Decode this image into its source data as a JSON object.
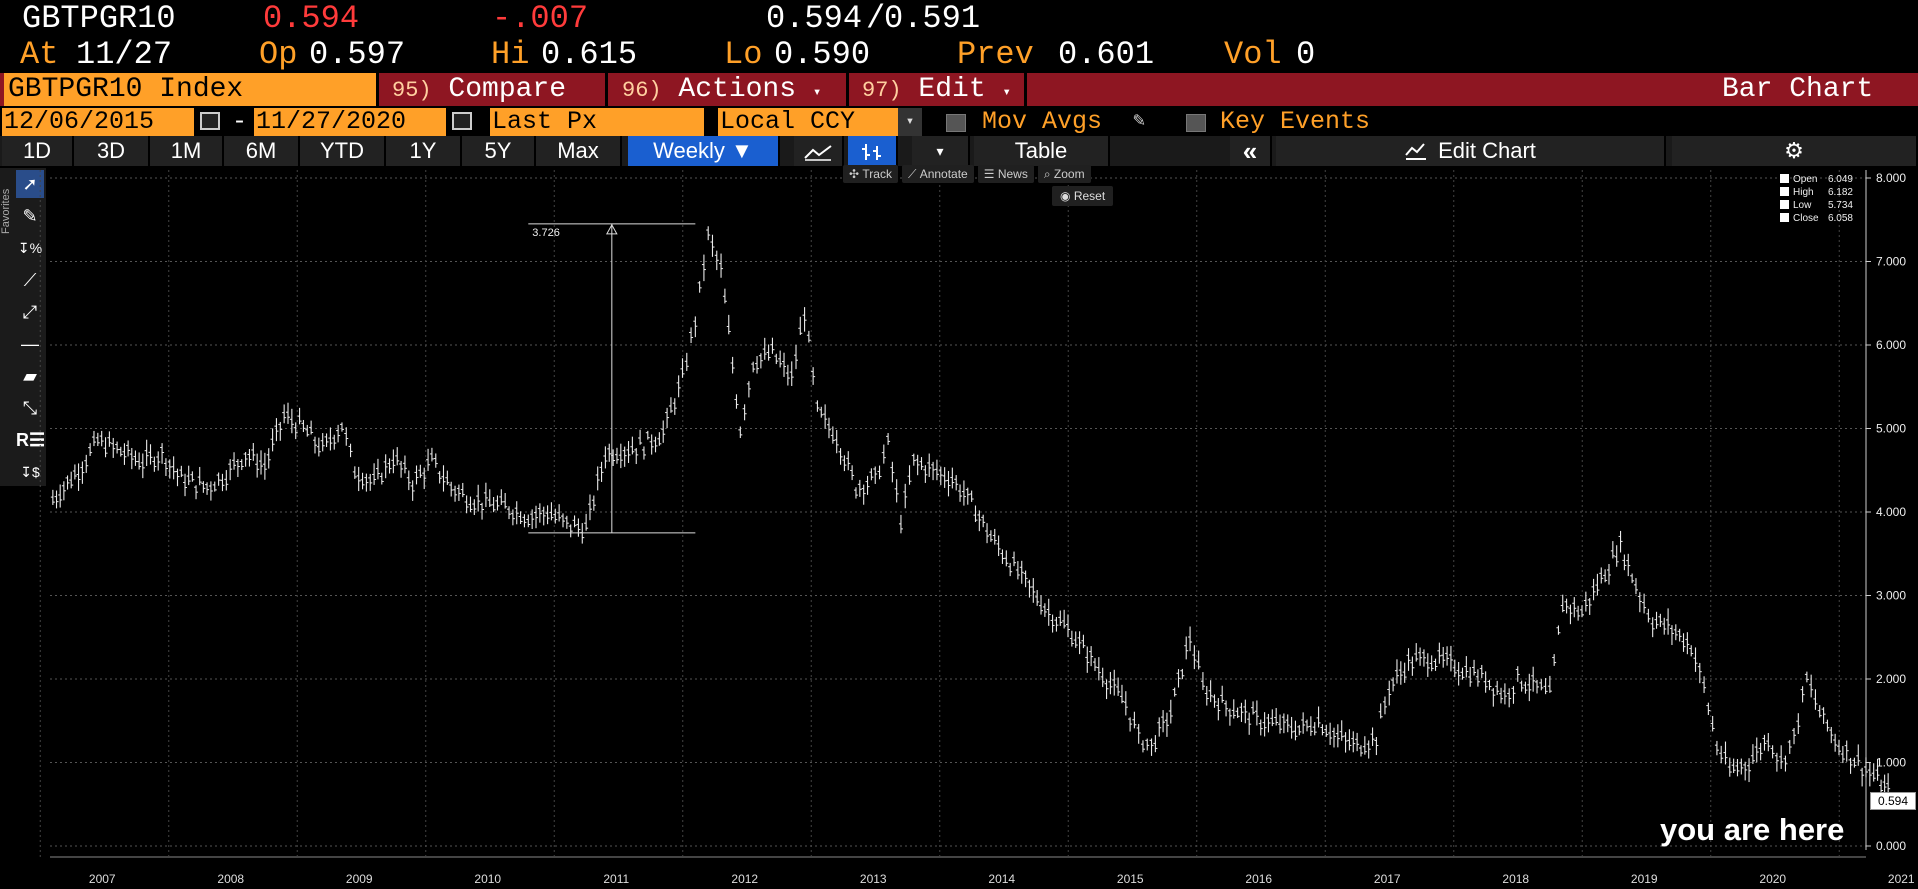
{
  "header": {
    "ticker": "GBTPGR10",
    "last": "0.594",
    "change": "-.007",
    "bid": "0.594",
    "ask_sep": "/",
    "ask": "0.591",
    "at_label": "At",
    "at_value": "11/27",
    "op_label": "Op",
    "op_value": "0.597",
    "hi_label": "Hi",
    "hi_value": "0.615",
    "lo_label": "Lo",
    "lo_value": "0.590",
    "prev_label": "Prev",
    "prev_value": "0.601",
    "vol_label": "Vol",
    "vol_value": "0"
  },
  "menubar": {
    "security": "GBTPGR10 Index",
    "compare_num": "95)",
    "compare": "Compare",
    "actions_num": "96)",
    "actions": "Actions",
    "edit_num": "97)",
    "edit": "Edit",
    "chart_type": "Bar Chart"
  },
  "datebar": {
    "start": "12/06/2015",
    "dash": "-",
    "end": "11/27/2020",
    "field": "Last Px",
    "currency": "Local CCY",
    "mov_avgs": "Mov Avgs",
    "key_events": "Key Events"
  },
  "tabs": [
    "1D",
    "3D",
    "1M",
    "6M",
    "YTD",
    "1Y",
    "5Y",
    "Max"
  ],
  "period": "Weekly",
  "table_label": "Table",
  "edit_chart_label": "Edit Chart",
  "chart_tools": {
    "track": "Track",
    "annotate": "Annotate",
    "news": "News",
    "zoom": "Zoom",
    "reset": "Reset"
  },
  "favorites_label": "Favorites",
  "legend": [
    {
      "label": "Open",
      "value": "6.049"
    },
    {
      "label": "High",
      "value": "6.182"
    },
    {
      "label": "Low",
      "value": "5.734"
    },
    {
      "label": "Close",
      "value": "6.058"
    }
  ],
  "annotation_text": "you are here",
  "chart_data": {
    "type": "bar",
    "ylim": [
      0,
      8
    ],
    "y_ticks": [
      "0.000",
      "1.000",
      "2.000",
      "3.000",
      "4.000",
      "5.000",
      "6.000",
      "7.000",
      "8.000"
    ],
    "x_labels": [
      "2007",
      "2008",
      "2009",
      "2010",
      "2011",
      "2012",
      "2013",
      "2014",
      "2015",
      "2016",
      "2017",
      "2018",
      "2019",
      "2020",
      "2021"
    ],
    "last_value": "0.594",
    "measure_label": "3.726",
    "measure": {
      "from_year": 2010.3,
      "to_year": 2011.6,
      "low": 3.75,
      "high": 7.45
    },
    "series": [
      {
        "values": [
          [
            2006.6,
            4.15
          ],
          [
            2006.8,
            4.5
          ],
          [
            2006.95,
            4.85
          ],
          [
            2007.1,
            4.75
          ],
          [
            2007.3,
            4.6
          ],
          [
            2007.45,
            4.7
          ],
          [
            2007.6,
            4.4
          ],
          [
            2007.8,
            4.3
          ],
          [
            2007.95,
            4.45
          ],
          [
            2008.1,
            4.7
          ],
          [
            2008.25,
            4.55
          ],
          [
            2008.4,
            5.15
          ],
          [
            2008.55,
            5.0
          ],
          [
            2008.7,
            4.75
          ],
          [
            2008.85,
            5.05
          ],
          [
            2008.95,
            4.5
          ],
          [
            2009.1,
            4.35
          ],
          [
            2009.25,
            4.65
          ],
          [
            2009.4,
            4.35
          ],
          [
            2009.55,
            4.6
          ],
          [
            2009.7,
            4.3
          ],
          [
            2009.85,
            4.15
          ],
          [
            2010.0,
            4.1
          ],
          [
            2010.15,
            4.05
          ],
          [
            2010.3,
            3.95
          ],
          [
            2010.45,
            4.0
          ],
          [
            2010.6,
            3.85
          ],
          [
            2010.75,
            3.8
          ],
          [
            2010.9,
            4.7
          ],
          [
            2011.05,
            4.75
          ],
          [
            2011.2,
            4.8
          ],
          [
            2011.35,
            4.95
          ],
          [
            2011.5,
            5.6
          ],
          [
            2011.6,
            6.3
          ],
          [
            2011.7,
            7.3
          ],
          [
            2011.8,
            6.9
          ],
          [
            2011.95,
            5.0
          ],
          [
            2012.05,
            5.8
          ],
          [
            2012.2,
            5.9
          ],
          [
            2012.35,
            5.6
          ],
          [
            2012.45,
            6.4
          ],
          [
            2012.55,
            5.2
          ],
          [
            2012.7,
            4.9
          ],
          [
            2012.85,
            4.3
          ],
          [
            2013.0,
            4.4
          ],
          [
            2013.1,
            4.8
          ],
          [
            2013.2,
            3.9
          ],
          [
            2013.3,
            4.6
          ],
          [
            2013.45,
            4.5
          ],
          [
            2013.6,
            4.4
          ],
          [
            2013.75,
            4.1
          ],
          [
            2013.9,
            3.7
          ],
          [
            2014.05,
            3.4
          ],
          [
            2014.2,
            3.1
          ],
          [
            2014.35,
            2.8
          ],
          [
            2014.5,
            2.6
          ],
          [
            2014.65,
            2.3
          ],
          [
            2014.8,
            2.0
          ],
          [
            2014.95,
            1.7
          ],
          [
            2015.05,
            1.3
          ],
          [
            2015.15,
            1.2
          ],
          [
            2015.3,
            1.6
          ],
          [
            2015.45,
            2.5
          ],
          [
            2015.55,
            1.9
          ],
          [
            2015.7,
            1.7
          ],
          [
            2015.85,
            1.6
          ],
          [
            2016.0,
            1.5
          ],
          [
            2016.15,
            1.45
          ],
          [
            2016.3,
            1.4
          ],
          [
            2016.45,
            1.5
          ],
          [
            2016.6,
            1.3
          ],
          [
            2016.75,
            1.2
          ],
          [
            2016.9,
            1.3
          ],
          [
            2017.0,
            1.9
          ],
          [
            2017.15,
            2.2
          ],
          [
            2017.3,
            2.25
          ],
          [
            2017.45,
            2.2
          ],
          [
            2017.6,
            2.1
          ],
          [
            2017.75,
            2.0
          ],
          [
            2017.9,
            1.8
          ],
          [
            2018.0,
            2.0
          ],
          [
            2018.15,
            1.9
          ],
          [
            2018.25,
            1.8
          ],
          [
            2018.35,
            2.9
          ],
          [
            2018.5,
            2.8
          ],
          [
            2018.65,
            3.2
          ],
          [
            2018.8,
            3.6
          ],
          [
            2018.95,
            3.0
          ],
          [
            2019.05,
            2.7
          ],
          [
            2019.2,
            2.6
          ],
          [
            2019.35,
            2.4
          ],
          [
            2019.45,
            1.9
          ],
          [
            2019.55,
            1.2
          ],
          [
            2019.65,
            0.9
          ],
          [
            2019.8,
            1.0
          ],
          [
            2019.95,
            1.3
          ],
          [
            2020.05,
            1.0
          ],
          [
            2020.15,
            1.3
          ],
          [
            2020.25,
            2.0
          ],
          [
            2020.35,
            1.6
          ],
          [
            2020.5,
            1.2
          ],
          [
            2020.65,
            1.0
          ],
          [
            2020.8,
            0.8
          ],
          [
            2020.91,
            0.6
          ]
        ]
      }
    ]
  }
}
